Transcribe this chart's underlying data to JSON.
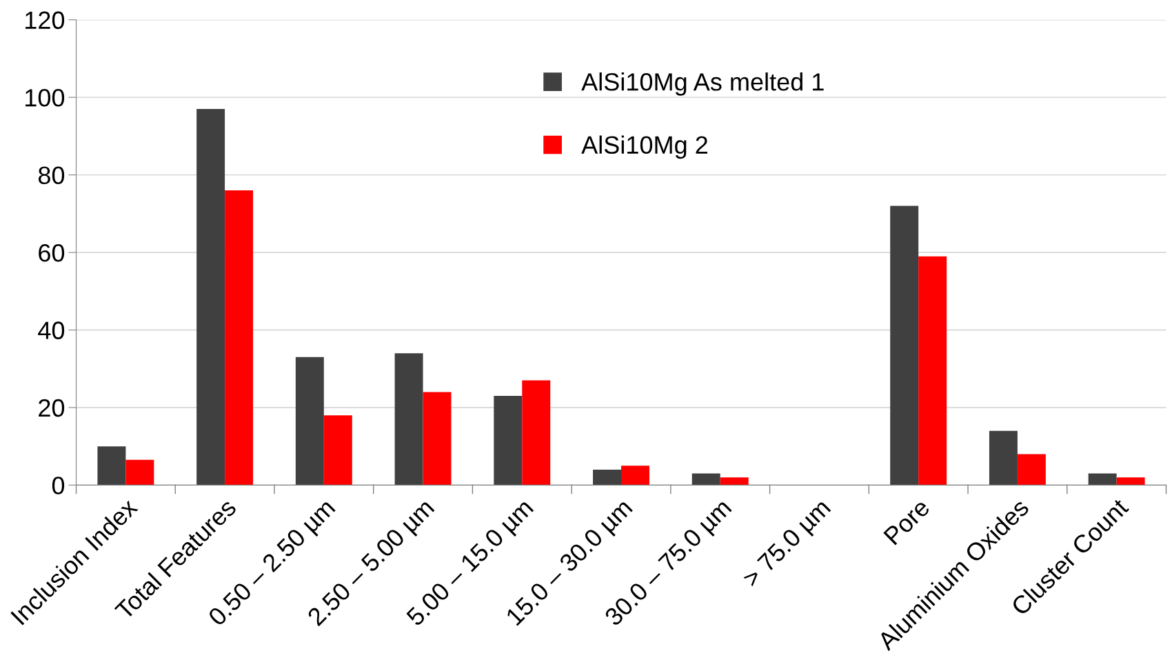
{
  "chart_data": {
    "type": "bar",
    "categories": [
      "Inclusion Index",
      "Total Features",
      "0.50 – 2.50 µm",
      "2.50 – 5.00 µm",
      "5.00 – 15.0 µm",
      "15.0 – 30.0 µm",
      "30.0 – 75.0 µm",
      "> 75.0 µm",
      "Pore",
      "Aluminium Oxides",
      "Cluster Count"
    ],
    "series": [
      {
        "name": "AlSi10Mg As melted 1",
        "color": "#404040",
        "values": [
          10,
          97,
          33,
          34,
          23,
          4,
          3,
          0,
          72,
          14,
          3
        ]
      },
      {
        "name": "AlSi10Mg 2",
        "color": "#ff0000",
        "values": [
          6.5,
          76,
          18,
          24,
          27,
          5,
          2,
          0,
          59,
          8,
          2
        ]
      }
    ],
    "ylim": [
      0,
      120
    ],
    "yticks": [
      0,
      20,
      40,
      60,
      80,
      100,
      120
    ],
    "grid": "y",
    "legend": "top"
  }
}
